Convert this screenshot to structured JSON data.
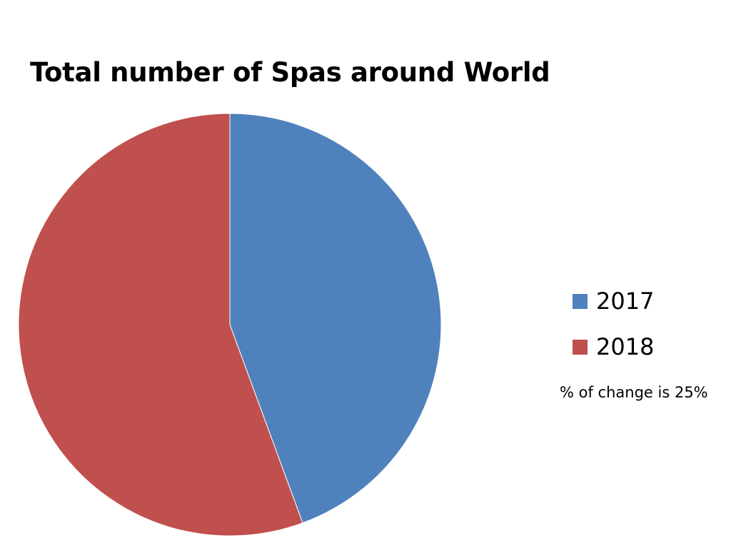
{
  "chart_data": {
    "type": "pie",
    "title": "Total number of Spas around World",
    "categories": [
      "2017",
      "2018"
    ],
    "values": [
      44.4,
      55.6
    ],
    "colors": [
      "#4F81BD",
      "#C0504D"
    ],
    "legend_position": "right",
    "annotation": "% of change is 25%"
  }
}
